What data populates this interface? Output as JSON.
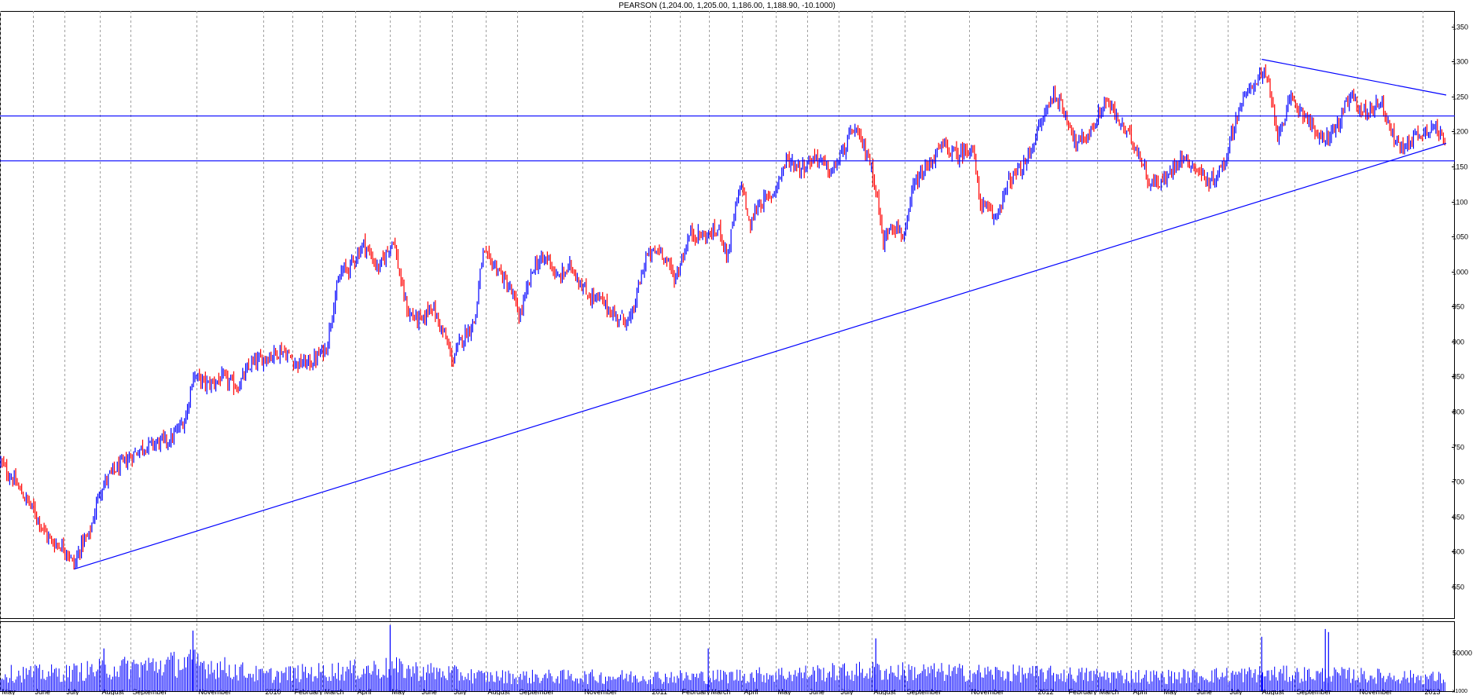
{
  "chart_data": {
    "type": "candlestick",
    "title": "PEARSON (1,204.00, 1,205.00, 1,186.00, 1,188.90, -10.1000)",
    "colors": {
      "up": "#0000ff",
      "down": "#ff0000",
      "trendline": "#0000ff",
      "volume": "#0000ff",
      "grid": "#a0a0a0"
    },
    "grid": true,
    "price_axis": {
      "ylim": [
        505,
        1372
      ],
      "ticks": [
        550,
        600,
        650,
        700,
        750,
        800,
        850,
        900,
        950,
        1000,
        1050,
        1100,
        1150,
        1200,
        1250,
        1300,
        1350
      ],
      "tick_labels": [
        "550",
        "600",
        "650",
        "700",
        "750",
        "800",
        "850",
        "900",
        "950",
        "1000",
        "1050",
        "1100",
        "1150",
        "1200",
        "1250",
        "1300",
        "1350"
      ]
    },
    "volume_axis": {
      "ylim": [
        0,
        90000
      ],
      "ticks": [
        50000
      ],
      "tick_labels": [
        "50000"
      ],
      "unit_label": "x1000"
    },
    "time_axis": {
      "xlim": [
        "2009-05-01",
        "2013-01-24"
      ],
      "labels": [
        {
          "date": "2009-05-01",
          "text": "May"
        },
        {
          "date": "2009-06-01",
          "text": "June"
        },
        {
          "date": "2009-07-01",
          "text": "July"
        },
        {
          "date": "2009-08-03",
          "text": "August"
        },
        {
          "date": "2009-09-01",
          "text": "September"
        },
        {
          "date": "2009-11-02",
          "text": "November"
        },
        {
          "date": "2010-01-04",
          "text": "2010"
        },
        {
          "date": "2010-02-01",
          "text": "February"
        },
        {
          "date": "2010-03-01",
          "text": "March"
        },
        {
          "date": "2010-04-01",
          "text": "April"
        },
        {
          "date": "2010-05-04",
          "text": "May"
        },
        {
          "date": "2010-06-01",
          "text": "June"
        },
        {
          "date": "2010-07-01",
          "text": "July"
        },
        {
          "date": "2010-08-02",
          "text": "August"
        },
        {
          "date": "2010-09-01",
          "text": "September"
        },
        {
          "date": "2010-11-01",
          "text": "November"
        },
        {
          "date": "2011-01-04",
          "text": "2011"
        },
        {
          "date": "2011-02-01",
          "text": "February"
        },
        {
          "date": "2011-03-01",
          "text": "March"
        },
        {
          "date": "2011-04-01",
          "text": "April"
        },
        {
          "date": "2011-05-03",
          "text": "May"
        },
        {
          "date": "2011-06-01",
          "text": "June"
        },
        {
          "date": "2011-07-01",
          "text": "July"
        },
        {
          "date": "2011-08-01",
          "text": "August"
        },
        {
          "date": "2011-09-01",
          "text": "September"
        },
        {
          "date": "2011-11-01",
          "text": "November"
        },
        {
          "date": "2012-01-03",
          "text": "2012"
        },
        {
          "date": "2012-02-01",
          "text": "February"
        },
        {
          "date": "2012-03-01",
          "text": "March"
        },
        {
          "date": "2012-04-02",
          "text": "April"
        },
        {
          "date": "2012-05-01",
          "text": "May"
        },
        {
          "date": "2012-06-01",
          "text": "June"
        },
        {
          "date": "2012-07-02",
          "text": "July"
        },
        {
          "date": "2012-08-01",
          "text": "August"
        },
        {
          "date": "2012-09-03",
          "text": "September"
        },
        {
          "date": "2012-11-01",
          "text": "November"
        },
        {
          "date": "2013-01-02",
          "text": "2013"
        }
      ]
    },
    "price_path": [
      {
        "date": "2009-05-01",
        "close": 730
      },
      {
        "date": "2009-05-08",
        "close": 712
      },
      {
        "date": "2009-05-15",
        "close": 700
      },
      {
        "date": "2009-05-22",
        "close": 682
      },
      {
        "date": "2009-05-29",
        "close": 668
      },
      {
        "date": "2009-06-05",
        "close": 650
      },
      {
        "date": "2009-06-12",
        "close": 628
      },
      {
        "date": "2009-06-19",
        "close": 613
      },
      {
        "date": "2009-06-26",
        "close": 610
      },
      {
        "date": "2009-07-03",
        "close": 602
      },
      {
        "date": "2009-07-10",
        "close": 580
      },
      {
        "date": "2009-07-17",
        "close": 612
      },
      {
        "date": "2009-07-24",
        "close": 622
      },
      {
        "date": "2009-07-28",
        "close": 648
      },
      {
        "date": "2009-08-03",
        "close": 688
      },
      {
        "date": "2009-08-14",
        "close": 712
      },
      {
        "date": "2009-08-28",
        "close": 730
      },
      {
        "date": "2009-09-11",
        "close": 748
      },
      {
        "date": "2009-09-25",
        "close": 755
      },
      {
        "date": "2009-10-09",
        "close": 760
      },
      {
        "date": "2009-10-23",
        "close": 790
      },
      {
        "date": "2009-10-30",
        "close": 852
      },
      {
        "date": "2009-11-13",
        "close": 838
      },
      {
        "date": "2009-11-27",
        "close": 848
      },
      {
        "date": "2009-12-11",
        "close": 835
      },
      {
        "date": "2009-12-24",
        "close": 868
      },
      {
        "date": "2010-01-08",
        "close": 878
      },
      {
        "date": "2010-01-22",
        "close": 888
      },
      {
        "date": "2010-02-05",
        "close": 868
      },
      {
        "date": "2010-02-19",
        "close": 870
      },
      {
        "date": "2010-03-05",
        "close": 892
      },
      {
        "date": "2010-03-12",
        "close": 958
      },
      {
        "date": "2010-03-19",
        "close": 1000
      },
      {
        "date": "2010-03-26",
        "close": 1005
      },
      {
        "date": "2010-04-09",
        "close": 1040
      },
      {
        "date": "2010-04-23",
        "close": 1003
      },
      {
        "date": "2010-05-07",
        "close": 1048
      },
      {
        "date": "2010-05-14",
        "close": 985
      },
      {
        "date": "2010-05-21",
        "close": 940
      },
      {
        "date": "2010-06-04",
        "close": 928
      },
      {
        "date": "2010-06-11",
        "close": 955
      },
      {
        "date": "2010-06-25",
        "close": 905
      },
      {
        "date": "2010-07-02",
        "close": 872
      },
      {
        "date": "2010-07-09",
        "close": 900
      },
      {
        "date": "2010-07-23",
        "close": 930
      },
      {
        "date": "2010-07-30",
        "close": 1025
      },
      {
        "date": "2010-08-13",
        "close": 1005
      },
      {
        "date": "2010-08-27",
        "close": 968
      },
      {
        "date": "2010-09-03",
        "close": 935
      },
      {
        "date": "2010-09-17",
        "close": 1010
      },
      {
        "date": "2010-10-01",
        "close": 1020
      },
      {
        "date": "2010-10-08",
        "close": 988
      },
      {
        "date": "2010-10-22",
        "close": 1008
      },
      {
        "date": "2010-11-05",
        "close": 968
      },
      {
        "date": "2010-11-19",
        "close": 958
      },
      {
        "date": "2010-12-03",
        "close": 935
      },
      {
        "date": "2010-12-17",
        "close": 930
      },
      {
        "date": "2010-12-31",
        "close": 1020
      },
      {
        "date": "2011-01-14",
        "close": 1032
      },
      {
        "date": "2011-01-28",
        "close": 990
      },
      {
        "date": "2011-02-11",
        "close": 1055
      },
      {
        "date": "2011-02-25",
        "close": 1050
      },
      {
        "date": "2011-03-11",
        "close": 1060
      },
      {
        "date": "2011-03-18",
        "close": 1020
      },
      {
        "date": "2011-03-25",
        "close": 1085
      },
      {
        "date": "2011-04-01",
        "close": 1128
      },
      {
        "date": "2011-04-08",
        "close": 1060
      },
      {
        "date": "2011-04-15",
        "close": 1095
      },
      {
        "date": "2011-04-29",
        "close": 1108
      },
      {
        "date": "2011-05-13",
        "close": 1160
      },
      {
        "date": "2011-05-27",
        "close": 1148
      },
      {
        "date": "2011-06-10",
        "close": 1165
      },
      {
        "date": "2011-06-24",
        "close": 1140
      },
      {
        "date": "2011-07-08",
        "close": 1180
      },
      {
        "date": "2011-07-15",
        "close": 1205
      },
      {
        "date": "2011-07-29",
        "close": 1165
      },
      {
        "date": "2011-08-05",
        "close": 1120
      },
      {
        "date": "2011-08-12",
        "close": 1040
      },
      {
        "date": "2011-08-19",
        "close": 1070
      },
      {
        "date": "2011-09-02",
        "close": 1050
      },
      {
        "date": "2011-09-09",
        "close": 1120
      },
      {
        "date": "2011-09-23",
        "close": 1150
      },
      {
        "date": "2011-10-07",
        "close": 1180
      },
      {
        "date": "2011-10-21",
        "close": 1165
      },
      {
        "date": "2011-11-04",
        "close": 1180
      },
      {
        "date": "2011-11-11",
        "close": 1100
      },
      {
        "date": "2011-11-25",
        "close": 1075
      },
      {
        "date": "2011-12-09",
        "close": 1130
      },
      {
        "date": "2011-12-23",
        "close": 1150
      },
      {
        "date": "2012-01-06",
        "close": 1205
      },
      {
        "date": "2012-01-13",
        "close": 1232
      },
      {
        "date": "2012-01-20",
        "close": 1255
      },
      {
        "date": "2012-02-03",
        "close": 1215
      },
      {
        "date": "2012-02-10",
        "close": 1180
      },
      {
        "date": "2012-02-24",
        "close": 1200
      },
      {
        "date": "2012-03-09",
        "close": 1245
      },
      {
        "date": "2012-03-23",
        "close": 1210
      },
      {
        "date": "2012-04-06",
        "close": 1180
      },
      {
        "date": "2012-04-20",
        "close": 1125
      },
      {
        "date": "2012-05-04",
        "close": 1130
      },
      {
        "date": "2012-05-18",
        "close": 1165
      },
      {
        "date": "2012-06-01",
        "close": 1150
      },
      {
        "date": "2012-06-15",
        "close": 1125
      },
      {
        "date": "2012-06-29",
        "close": 1155
      },
      {
        "date": "2012-07-06",
        "close": 1200
      },
      {
        "date": "2012-07-13",
        "close": 1235
      },
      {
        "date": "2012-07-27",
        "close": 1270
      },
      {
        "date": "2012-08-03",
        "close": 1285
      },
      {
        "date": "2012-08-10",
        "close": 1265
      },
      {
        "date": "2012-08-17",
        "close": 1195
      },
      {
        "date": "2012-08-31",
        "close": 1245
      },
      {
        "date": "2012-09-14",
        "close": 1222
      },
      {
        "date": "2012-09-28",
        "close": 1185
      },
      {
        "date": "2012-10-12",
        "close": 1205
      },
      {
        "date": "2012-10-26",
        "close": 1250
      },
      {
        "date": "2012-11-09",
        "close": 1225
      },
      {
        "date": "2012-11-23",
        "close": 1245
      },
      {
        "date": "2012-11-30",
        "close": 1215
      },
      {
        "date": "2012-12-07",
        "close": 1185
      },
      {
        "date": "2012-12-14",
        "close": 1175
      },
      {
        "date": "2012-12-21",
        "close": 1190
      },
      {
        "date": "2013-01-04",
        "close": 1200
      },
      {
        "date": "2013-01-11",
        "close": 1210
      },
      {
        "date": "2013-01-18",
        "close": 1195
      },
      {
        "date": "2013-01-24",
        "close": 1188.9
      }
    ],
    "last_bar": {
      "open": 1204.0,
      "high": 1205.0,
      "low": 1186.0,
      "close": 1188.9,
      "change": -10.1
    },
    "horizontal_lines": [
      1222,
      1158
    ],
    "trendlines": [
      {
        "name": "",
        "points": [
          {
            "date": "2009-07-10",
            "price": 575
          },
          {
            "date": "2013-01-24",
            "price": 1183
          }
        ]
      },
      {
        "name": "",
        "points": [
          {
            "date": "2012-08-03",
            "price": 1303
          },
          {
            "date": "2013-01-24",
            "price": 1252
          }
        ]
      }
    ],
    "volume_path": [
      {
        "date": "2009-05-01",
        "volume": 24000
      },
      {
        "date": "2009-07-01",
        "volume": 25000
      },
      {
        "date": "2009-08-03",
        "volume": 30000
      },
      {
        "date": "2009-10-30",
        "volume": 40000
      },
      {
        "date": "2010-01-04",
        "volume": 22000
      },
      {
        "date": "2010-05-04",
        "volume": 32000
      },
      {
        "date": "2010-08-02",
        "volume": 20000
      },
      {
        "date": "2010-11-01",
        "volume": 20000
      },
      {
        "date": "2011-03-01",
        "volume": 20000
      },
      {
        "date": "2011-08-01",
        "volume": 28000
      },
      {
        "date": "2012-01-03",
        "volume": 24000
      },
      {
        "date": "2012-05-01",
        "volume": 20000
      },
      {
        "date": "2012-08-01",
        "volume": 24000
      },
      {
        "date": "2012-11-01",
        "volume": 22000
      },
      {
        "date": "2013-01-24",
        "volume": 18000
      }
    ],
    "volume_spikes": [
      {
        "date": "2009-08-07",
        "volume": 55000
      },
      {
        "date": "2009-10-30",
        "volume": 78000
      },
      {
        "date": "2010-05-04",
        "volume": 85000
      },
      {
        "date": "2011-08-05",
        "volume": 68000
      },
      {
        "date": "2011-02-28",
        "volume": 55000
      },
      {
        "date": "2012-08-03",
        "volume": 70000
      },
      {
        "date": "2012-10-02",
        "volume": 80000
      },
      {
        "date": "2012-10-05",
        "volume": 76000
      }
    ]
  }
}
